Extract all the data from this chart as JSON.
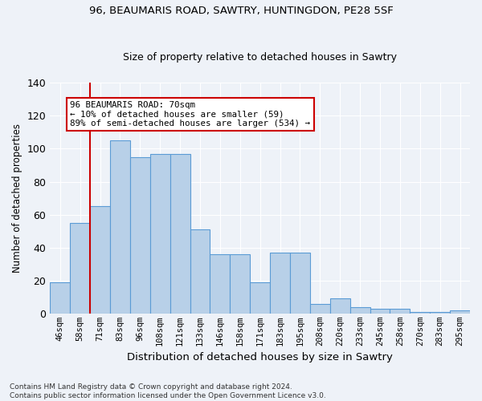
{
  "title1": "96, BEAUMARIS ROAD, SAWTRY, HUNTINGDON, PE28 5SF",
  "title2": "Size of property relative to detached houses in Sawtry",
  "xlabel": "Distribution of detached houses by size in Sawtry",
  "ylabel": "Number of detached properties",
  "categories": [
    "46sqm",
    "58sqm",
    "71sqm",
    "83sqm",
    "96sqm",
    "108sqm",
    "121sqm",
    "133sqm",
    "146sqm",
    "158sqm",
    "171sqm",
    "183sqm",
    "195sqm",
    "208sqm",
    "220sqm",
    "233sqm",
    "245sqm",
    "258sqm",
    "270sqm",
    "283sqm",
    "295sqm"
  ],
  "values": [
    19,
    55,
    65,
    105,
    95,
    97,
    97,
    51,
    36,
    36,
    19,
    37,
    37,
    6,
    9,
    4,
    3,
    3,
    1,
    1,
    2
  ],
  "bar_color": "#b8d0e8",
  "bar_edge_color": "#5b9bd5",
  "vline_color": "#cc0000",
  "vline_position": 1.5,
  "annotation_box_text": "96 BEAUMARIS ROAD: 70sqm\n← 10% of detached houses are smaller (59)\n89% of semi-detached houses are larger (534) →",
  "ylim": [
    0,
    140
  ],
  "yticks": [
    0,
    20,
    40,
    60,
    80,
    100,
    120,
    140
  ],
  "footer_text": "Contains HM Land Registry data © Crown copyright and database right 2024.\nContains public sector information licensed under the Open Government Licence v3.0.",
  "bg_color": "#eef2f8",
  "plot_bg_color": "#eef2f8",
  "grid_color": "#ffffff",
  "title1_fontsize": 9.5,
  "title2_fontsize": 9.0,
  "ylabel_fontsize": 8.5,
  "xlabel_fontsize": 9.5,
  "tick_fontsize": 7.5,
  "footer_fontsize": 6.5
}
